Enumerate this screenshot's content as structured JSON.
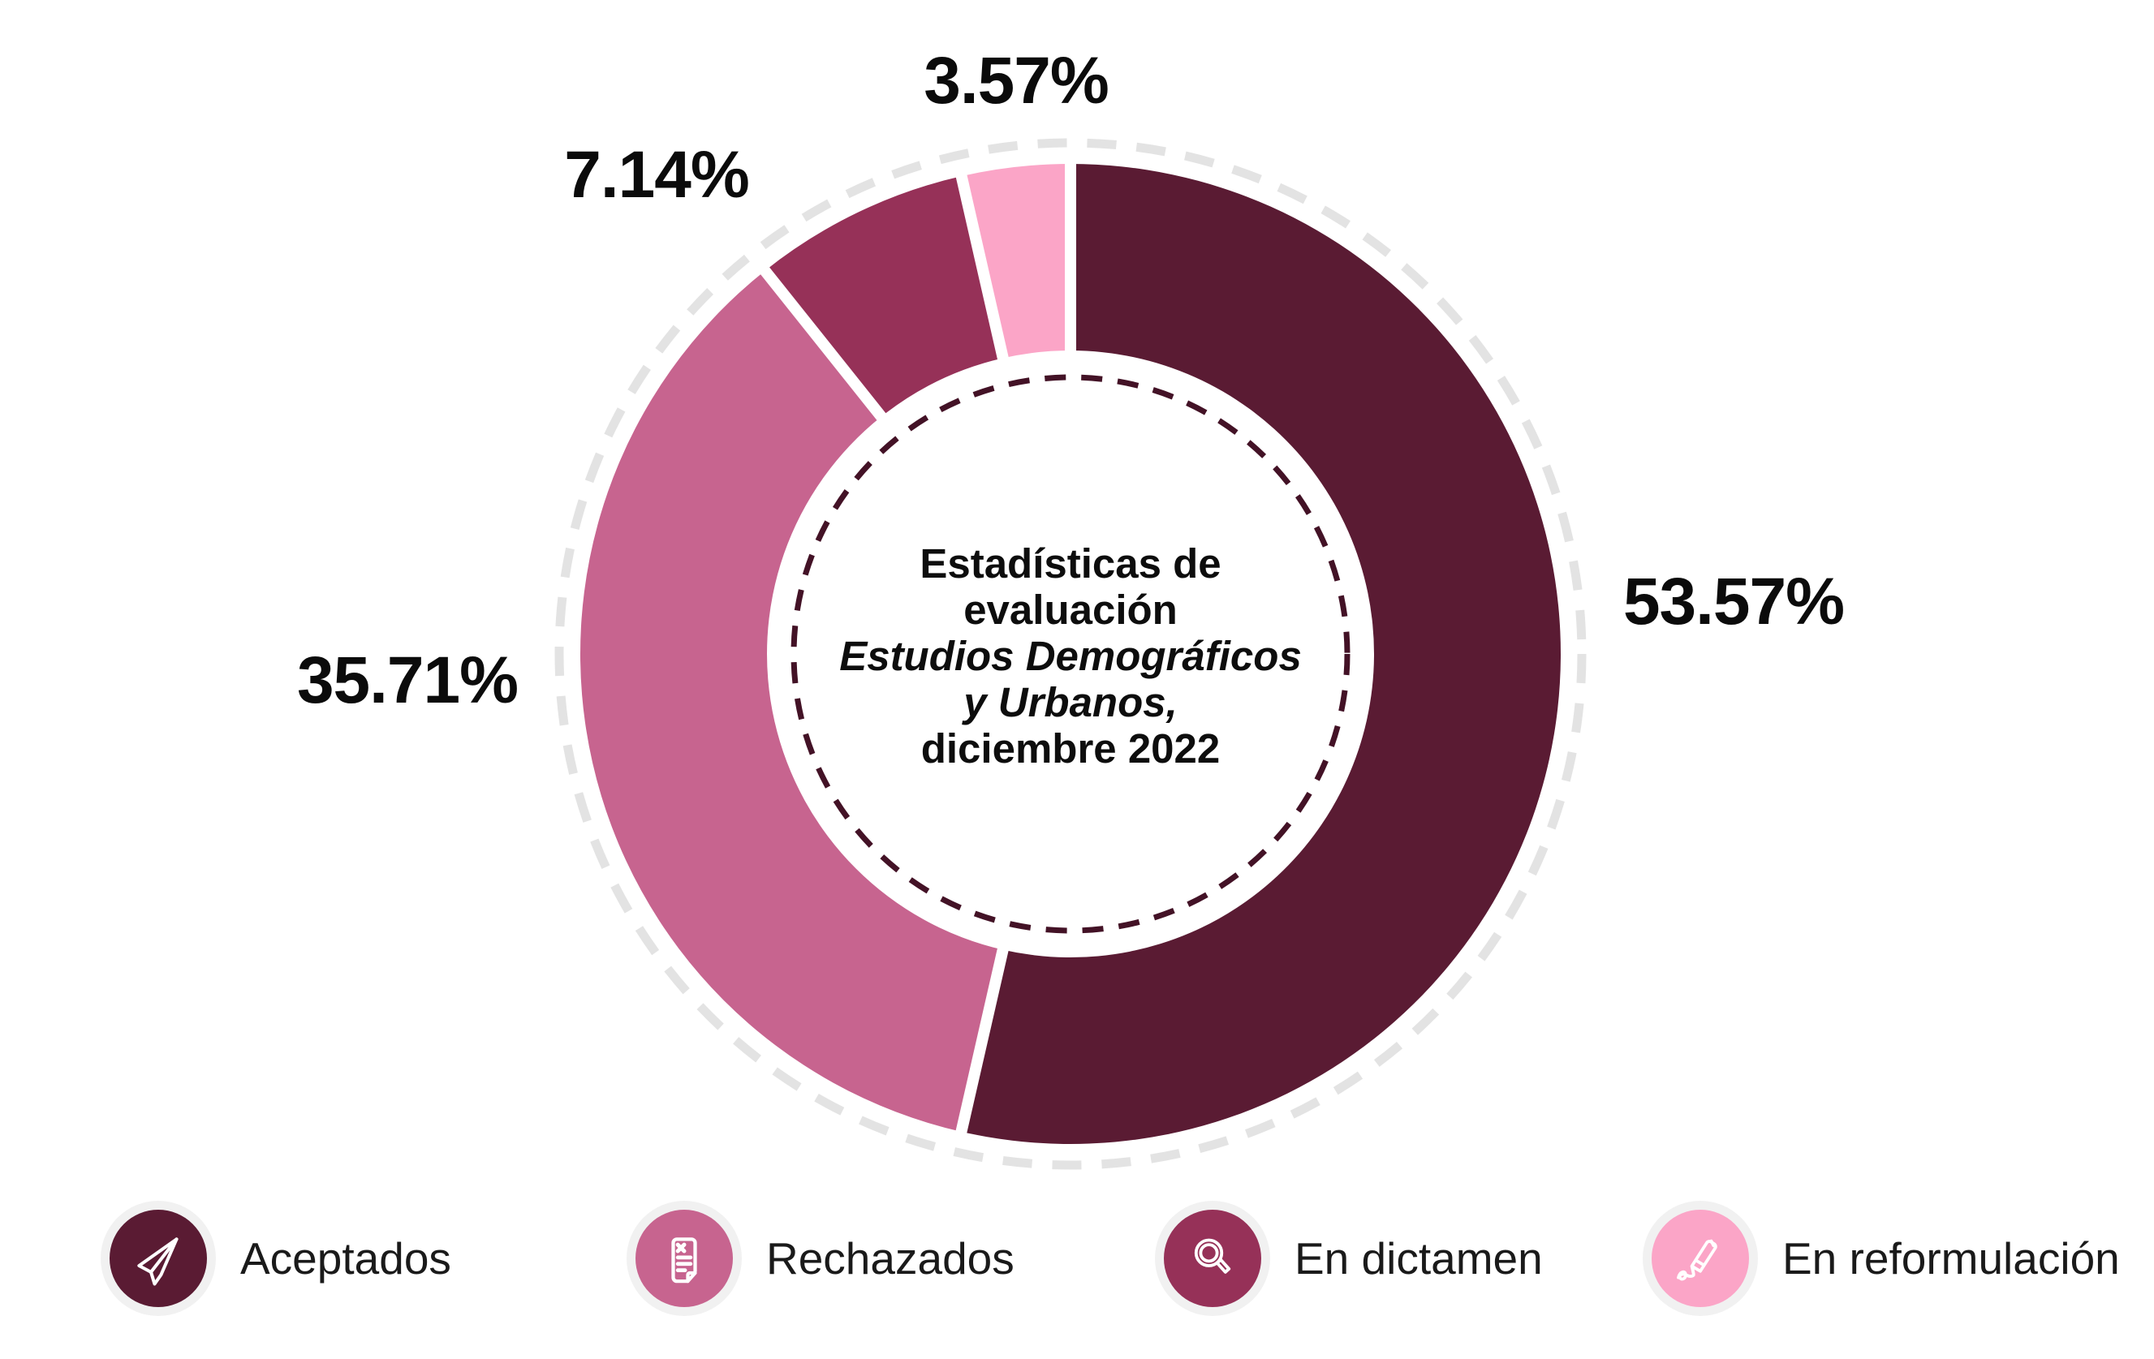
{
  "chart_data": {
    "type": "pie",
    "variant": "donut",
    "title_lines": [
      "Estadísticas de",
      "evaluación",
      "Estudios Demográficos",
      "y Urbanos,",
      "diciembre 2022"
    ],
    "title_italic_line_indexes": [
      2,
      3
    ],
    "start_angle_deg": 0,
    "direction": "clockwise",
    "slices": [
      {
        "name": "Aceptados",
        "value": 53.57,
        "label": "53.57%",
        "color": "#5A1B33"
      },
      {
        "name": "Rechazados",
        "value": 35.71,
        "label": "35.71%",
        "color": "#C7648F"
      },
      {
        "name": "En dictamen",
        "value": 7.14,
        "label": "7.14%",
        "color": "#963158"
      },
      {
        "name": "En reformulación",
        "value": 3.57,
        "label": "3.57%",
        "color": "#FBA5C7"
      }
    ],
    "styles": {
      "outer_dashed_ring_color": "#E3E3E3",
      "inner_dashed_ring_color": "#431226",
      "slice_gap_color": "#FFFFFF",
      "background": "#FFFFFF",
      "label_color": "#0B0B0B"
    }
  },
  "legend": {
    "items": [
      {
        "label": "Aceptados",
        "color": "#5A1B33",
        "icon": "paper-plane-icon",
        "ring_color": "#F1F1F1"
      },
      {
        "label": "Rechazados",
        "color": "#C7648F",
        "icon": "document-x-icon",
        "ring_color": "#F1F1F1"
      },
      {
        "label": "En dictamen",
        "color": "#963158",
        "icon": "magnifier-icon",
        "ring_color": "#F1F1F1"
      },
      {
        "label": "En reformulación",
        "color": "#FBA5C7",
        "icon": "pen-signature-icon",
        "ring_color": "#F1F1F1"
      }
    ]
  }
}
